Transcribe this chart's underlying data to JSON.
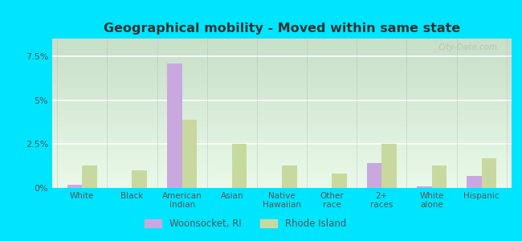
{
  "title": "Geographical mobility - Moved within same state",
  "categories": [
    "White",
    "Black",
    "American\nIndian",
    "Asian",
    "Native\nHawaiian",
    "Other\nrace",
    "2+\nraces",
    "White\nalone",
    "Hispanic"
  ],
  "woonsocket": [
    0.2,
    0.0,
    7.1,
    0.0,
    0.0,
    0.0,
    1.4,
    0.1,
    0.7
  ],
  "rhode_island": [
    1.3,
    1.0,
    3.9,
    2.5,
    1.3,
    0.8,
    2.5,
    1.3,
    1.7
  ],
  "woonsocket_color": "#c9a8e0",
  "rhode_island_color": "#c8d9a0",
  "ylim": [
    0,
    8.5
  ],
  "yticks": [
    0,
    2.5,
    5.0,
    7.5
  ],
  "ytick_labels": [
    "0%",
    "2.5%",
    "5%",
    "7.5%"
  ],
  "outer_bg": "#00e5ff",
  "bar_width": 0.3,
  "legend_woonsocket": "Woonsocket, RI",
  "legend_rhode_island": "Rhode Island",
  "watermark": "City-Data.com"
}
